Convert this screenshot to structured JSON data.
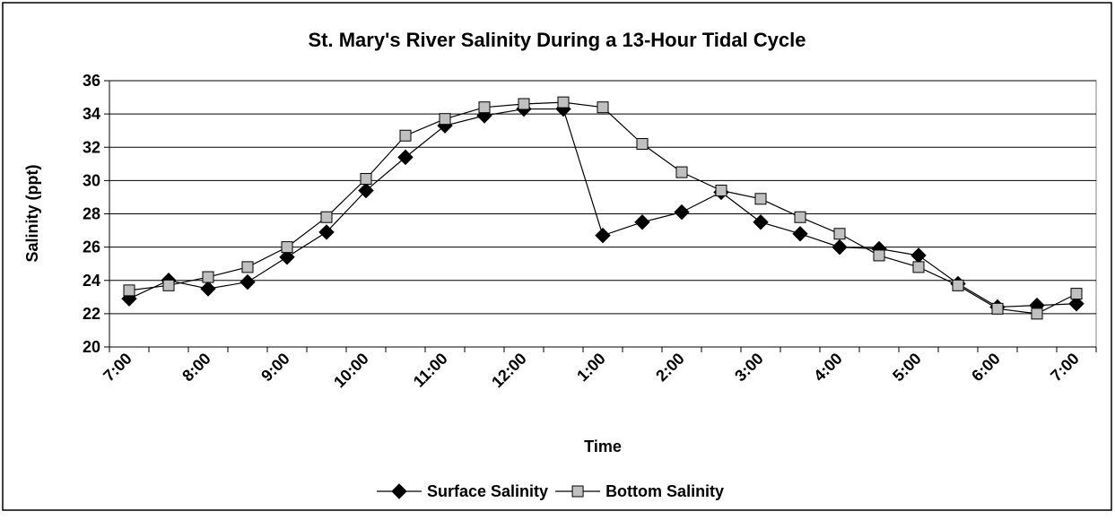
{
  "chart_data": {
    "type": "line",
    "title": "St. Mary's River Salinity During a 13-Hour Tidal Cycle",
    "xlabel": "Time",
    "ylabel": "Salinity (ppt)",
    "categories": [
      "7:00",
      null,
      "8:00",
      null,
      "9:00",
      null,
      "10:00",
      null,
      "11:00",
      null,
      "12:00",
      null,
      "1:00",
      null,
      "2:00",
      null,
      "3:00",
      null,
      "4:00",
      null,
      "5:00",
      null,
      "6:00",
      null,
      "7:00"
    ],
    "series": [
      {
        "name": "Surface Salinity",
        "color": "#000000",
        "marker": "diamond",
        "values": [
          22.9,
          24.0,
          23.5,
          23.9,
          25.4,
          26.9,
          29.4,
          31.4,
          33.3,
          33.9,
          34.3,
          34.3,
          26.7,
          27.5,
          28.1,
          29.3,
          27.5,
          26.8,
          26.0,
          25.9,
          25.5,
          23.8,
          22.4,
          22.5,
          22.6
        ]
      },
      {
        "name": "Bottom Salinity",
        "color": "#c0c0c0",
        "marker": "square",
        "values": [
          23.4,
          23.7,
          24.2,
          24.8,
          26.0,
          27.8,
          30.1,
          32.7,
          33.7,
          34.4,
          34.6,
          34.7,
          34.4,
          32.2,
          30.5,
          29.4,
          28.9,
          27.8,
          26.8,
          25.5,
          24.8,
          23.7,
          22.3,
          22.0,
          23.2
        ]
      }
    ],
    "ylim": [
      20,
      36
    ],
    "yticks": [
      20,
      22,
      24,
      26,
      28,
      30,
      32,
      34,
      36
    ],
    "grid": true,
    "legend": "bottom"
  }
}
